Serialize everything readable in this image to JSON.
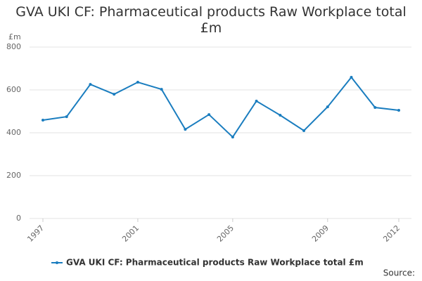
{
  "chart_data": {
    "type": "line",
    "title": "GVA UKI CF: Pharmaceutical products Raw Workplace total £m",
    "y_label": "£m",
    "source": "Source:",
    "x": [
      1997,
      1998,
      1999,
      2000,
      2001,
      2002,
      2003,
      2004,
      2005,
      2006,
      2007,
      2008,
      2009,
      2010,
      2011,
      2012
    ],
    "series": [
      {
        "name": "GVA UKI CF: Pharmaceutical products Raw Workplace total £m",
        "color": "#1a7dbf",
        "values": [
          459,
          475,
          626,
          580,
          636,
          603,
          416,
          485,
          380,
          548,
          482,
          410,
          521,
          659,
          518,
          505
        ]
      }
    ],
    "xlim": [
      1997,
      2012
    ],
    "xticks": [
      1997,
      2001,
      2005,
      2009,
      2012
    ],
    "ylim": [
      0,
      800
    ],
    "yticks": [
      0,
      200,
      400,
      600,
      800
    ],
    "grid": true,
    "legend": "bottom"
  }
}
